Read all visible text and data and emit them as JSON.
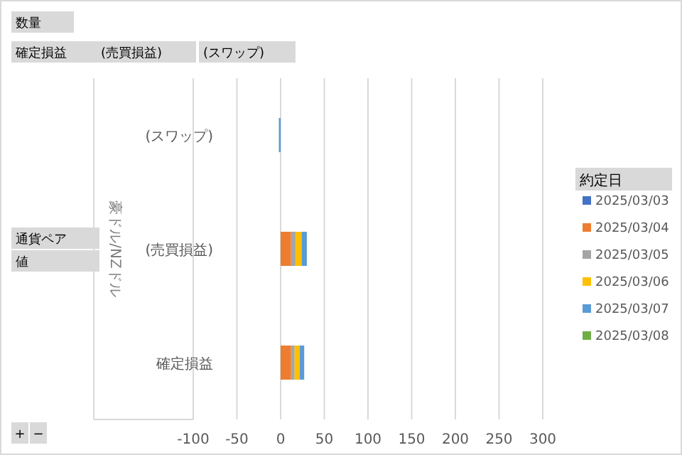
{
  "chart_data": {
    "type": "bar",
    "orientation": "horizontal",
    "stacked": true,
    "categories": [
      "(スワップ)",
      "(売買損益)",
      "確定損益"
    ],
    "ylabel": "豪ドル/NZドル",
    "legend_title": "約定日",
    "legend": "right",
    "grid": "x",
    "xlim": [
      -100,
      300
    ],
    "xticks": [
      -100,
      -50,
      0,
      50,
      100,
      150,
      200,
      250,
      300
    ],
    "series": [
      {
        "name": "2025/03/03",
        "color": "#4472c4",
        "values": [
          null,
          null,
          null
        ]
      },
      {
        "name": "2025/03/04",
        "color": "#ed7d31",
        "values": [
          null,
          12,
          12
        ]
      },
      {
        "name": "2025/03/05",
        "color": "#a5a5a5",
        "values": [
          null,
          5,
          4
        ]
      },
      {
        "name": "2025/03/06",
        "color": "#ffc000",
        "values": [
          null,
          7,
          6
        ]
      },
      {
        "name": "2025/03/07",
        "color": "#5b9bd5",
        "values": [
          -2,
          6,
          5
        ]
      },
      {
        "name": "2025/03/08",
        "color": "#70ad47",
        "values": [
          null,
          null,
          null
        ]
      }
    ],
    "annotations": [
      "数量",
      "確定損益",
      "(売買損益)",
      "(スワップ)",
      "通貨ペア",
      "値",
      "+",
      "−"
    ]
  }
}
